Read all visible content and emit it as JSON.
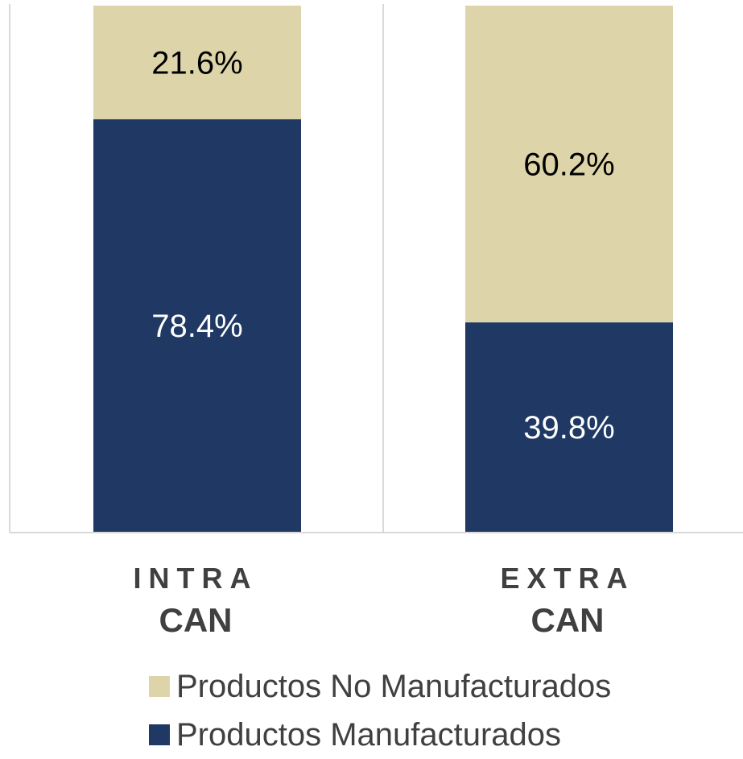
{
  "chart_data": {
    "type": "bar",
    "stacked": true,
    "categories": [
      [
        "INTRA",
        "CAN"
      ],
      [
        "EXTRA",
        "CAN"
      ]
    ],
    "series": [
      {
        "name": "Productos Manufacturados",
        "values": [
          78.4,
          39.8
        ],
        "labels": [
          "78.4%",
          "39.8%"
        ],
        "color": "#203864",
        "label_color": "#ffffff"
      },
      {
        "name": "Productos No Manufacturados",
        "values": [
          21.6,
          60.2
        ],
        "labels": [
          "21.6%",
          "60.2%"
        ],
        "color": "#ddd5a9",
        "label_color": "#000000"
      }
    ],
    "ylim": [
      0,
      100
    ],
    "legend_position": "bottom",
    "legend_order": [
      1,
      0
    ],
    "grid": false
  }
}
